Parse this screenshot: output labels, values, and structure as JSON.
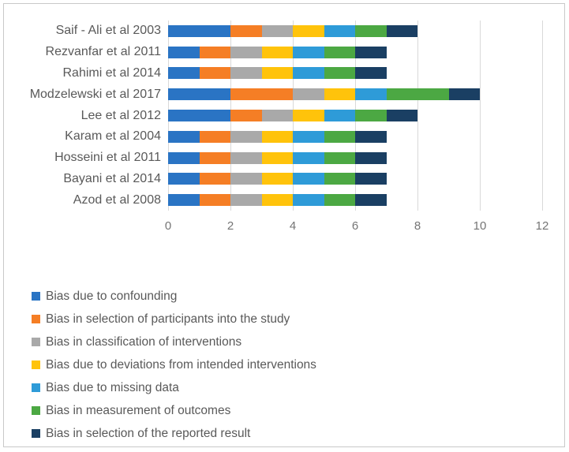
{
  "chart_data": {
    "type": "bar",
    "orientation": "horizontal",
    "stacked": true,
    "title": "",
    "xlabel": "",
    "ylabel": "",
    "grid": true,
    "legend_position": "bottom-left",
    "x_axis": {
      "min": 0,
      "max": 12,
      "ticks": [
        0,
        2,
        4,
        6,
        8,
        10,
        12
      ],
      "tick_labels": [
        "0",
        "2",
        "4",
        "6",
        "8",
        "10",
        "12"
      ]
    },
    "categories": [
      "Saif - Ali et al 2003",
      "Rezvanfar et al 2011",
      "Rahimi et al 2014",
      "Modzelewski et al 2017",
      "Lee et al 2012",
      "Karam et al 2004",
      "Hosseini et al 2011",
      "Bayani et al 2014",
      "Azod et al 2008"
    ],
    "series": [
      {
        "name": "Bias due to confounding",
        "color": "#2A74C4",
        "values": [
          2,
          1,
          1,
          2,
          2,
          1,
          1,
          1,
          1
        ]
      },
      {
        "name": "Bias in selection of participants into the study",
        "color": "#F57E25",
        "values": [
          1,
          1,
          1,
          2,
          1,
          1,
          1,
          1,
          1
        ]
      },
      {
        "name": "Bias in classification of interventions",
        "color": "#A9A9A9",
        "values": [
          1,
          1,
          1,
          1,
          1,
          1,
          1,
          1,
          1
        ]
      },
      {
        "name": "Bias due to deviations from intended interventions",
        "color": "#FFC30B",
        "values": [
          1,
          1,
          1,
          1,
          1,
          1,
          1,
          1,
          1
        ]
      },
      {
        "name": "Bias due to missing data",
        "color": "#2E9BD8",
        "values": [
          1,
          1,
          1,
          1,
          1,
          1,
          1,
          1,
          1
        ]
      },
      {
        "name": "Bias in measurement of outcomes",
        "color": "#4CA843",
        "values": [
          1,
          1,
          1,
          2,
          1,
          1,
          1,
          1,
          1
        ]
      },
      {
        "name": "Bias in selection of the reported result",
        "color": "#1A3F63",
        "values": [
          1,
          1,
          1,
          1,
          1,
          1,
          1,
          1,
          1
        ]
      }
    ],
    "bar_totals": [
      8,
      7,
      7,
      10,
      8,
      7,
      7,
      7,
      7
    ]
  },
  "styles": {
    "gridline_color": "#d9d9d9",
    "axis_text_color": "#757575",
    "label_text_color": "#595959",
    "frame_border_color": "#c9c9c9",
    "background_color": "#ffffff"
  }
}
